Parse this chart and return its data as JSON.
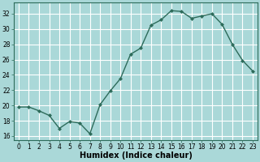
{
  "x": [
    0,
    1,
    2,
    3,
    4,
    5,
    6,
    7,
    8,
    9,
    10,
    11,
    12,
    13,
    14,
    15,
    16,
    17,
    18,
    19,
    20,
    21,
    22,
    23
  ],
  "y": [
    19.8,
    19.8,
    19.3,
    18.7,
    17.0,
    17.9,
    17.7,
    16.3,
    20.1,
    21.9,
    23.5,
    26.7,
    27.5,
    30.5,
    31.2,
    32.4,
    32.3,
    31.4,
    31.7,
    32.0,
    30.6,
    28.0,
    25.9,
    24.5
  ],
  "xlabel": "Humidex (Indice chaleur)",
  "ylim": [
    15.5,
    33.5
  ],
  "xlim": [
    -0.5,
    23.5
  ],
  "yticks": [
    16,
    18,
    20,
    22,
    24,
    26,
    28,
    30,
    32
  ],
  "xticks": [
    0,
    1,
    2,
    3,
    4,
    5,
    6,
    7,
    8,
    9,
    10,
    11,
    12,
    13,
    14,
    15,
    16,
    17,
    18,
    19,
    20,
    21,
    22,
    23
  ],
  "line_color": "#2d6b5a",
  "marker": "D",
  "marker_size": 2.0,
  "bg_color": "#aad8d8",
  "plot_bg_color": "#aad8d8",
  "grid_color": "#c8e8e8",
  "line_width": 1.0,
  "tick_label_fontsize": 5.5,
  "xlabel_fontsize": 7.0
}
